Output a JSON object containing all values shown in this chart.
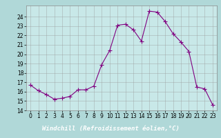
{
  "x": [
    0,
    1,
    2,
    3,
    4,
    5,
    6,
    7,
    8,
    9,
    10,
    11,
    12,
    13,
    14,
    15,
    16,
    17,
    18,
    19,
    20,
    21,
    22,
    23
  ],
  "y": [
    16.7,
    16.1,
    15.7,
    15.2,
    15.3,
    15.5,
    16.2,
    16.2,
    16.6,
    18.9,
    20.4,
    23.1,
    23.2,
    22.6,
    21.4,
    24.6,
    24.5,
    23.5,
    22.2,
    21.3,
    20.3,
    16.5,
    16.3,
    14.6
  ],
  "line_color": "#800080",
  "marker": "+",
  "markersize": 4,
  "linewidth": 0.8,
  "xlabel": "Windchill (Refroidissement éolien,°C)",
  "xlabel_fontsize": 6.5,
  "background_color": "#b0d8d8",
  "grid_color": "#999999",
  "yticks": [
    14,
    15,
    16,
    17,
    18,
    19,
    20,
    21,
    22,
    23,
    24
  ],
  "xticks": [
    0,
    1,
    2,
    3,
    4,
    5,
    6,
    7,
    8,
    9,
    10,
    11,
    12,
    13,
    14,
    15,
    16,
    17,
    18,
    19,
    20,
    21,
    22,
    23
  ],
  "ylim": [
    14,
    25.2
  ],
  "xlim": [
    -0.5,
    23.5
  ],
  "tick_fontsize": 5.5,
  "axis_bg": "#c8e8e8",
  "banner_color": "#800080",
  "banner_text_color": "#ffffff"
}
